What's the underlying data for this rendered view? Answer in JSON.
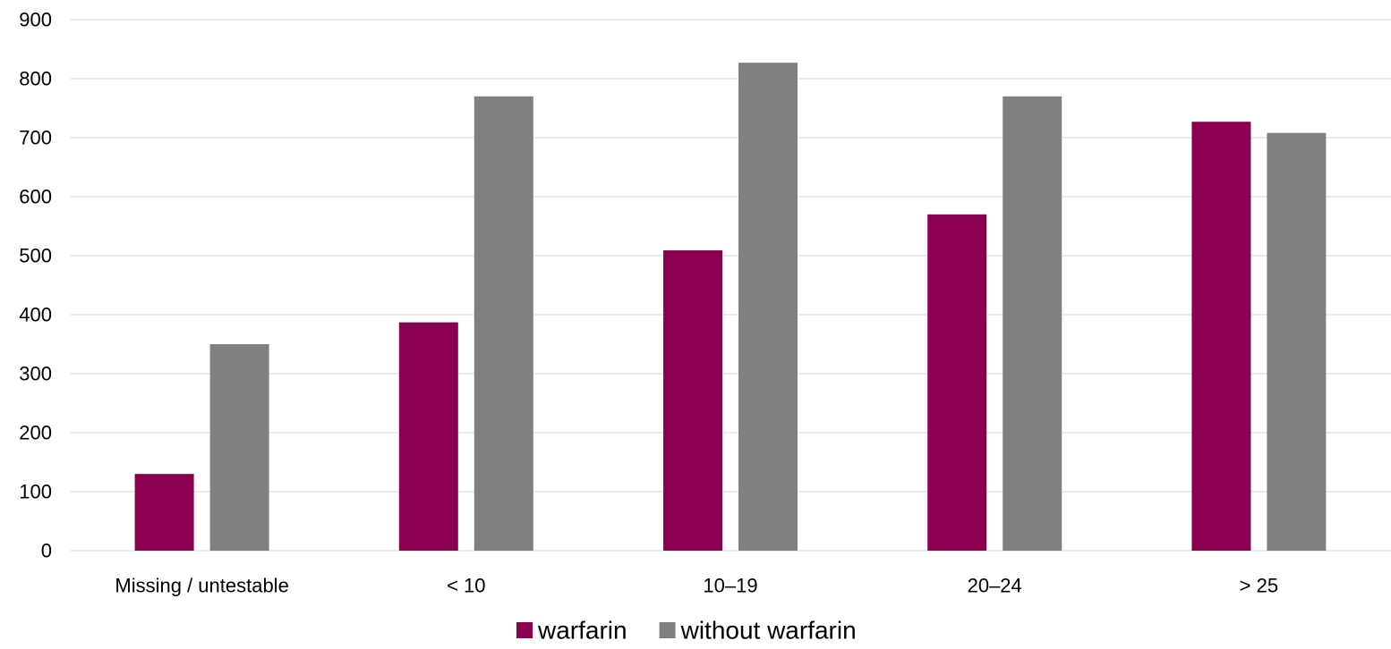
{
  "chart_data": {
    "type": "bar",
    "categories": [
      "Missing / untestable",
      "< 10",
      "10–19",
      "20–24",
      "> 25"
    ],
    "series": [
      {
        "name": "warfarin",
        "color": "#8B0050",
        "values": [
          130,
          387,
          509,
          570,
          727
        ]
      },
      {
        "name": "without warfarin",
        "color": "#808080",
        "values": [
          350,
          770,
          827,
          770,
          708
        ]
      }
    ],
    "title": "",
    "xlabel": "",
    "ylabel": "",
    "ylim": [
      0,
      900
    ],
    "yticks": [
      "0",
      "100",
      "200",
      "300",
      "400",
      "500",
      "600",
      "700",
      "800",
      "900"
    ],
    "grid": true,
    "legend_position": "bottom-center",
    "gridline_color": "#D9D9D9"
  }
}
